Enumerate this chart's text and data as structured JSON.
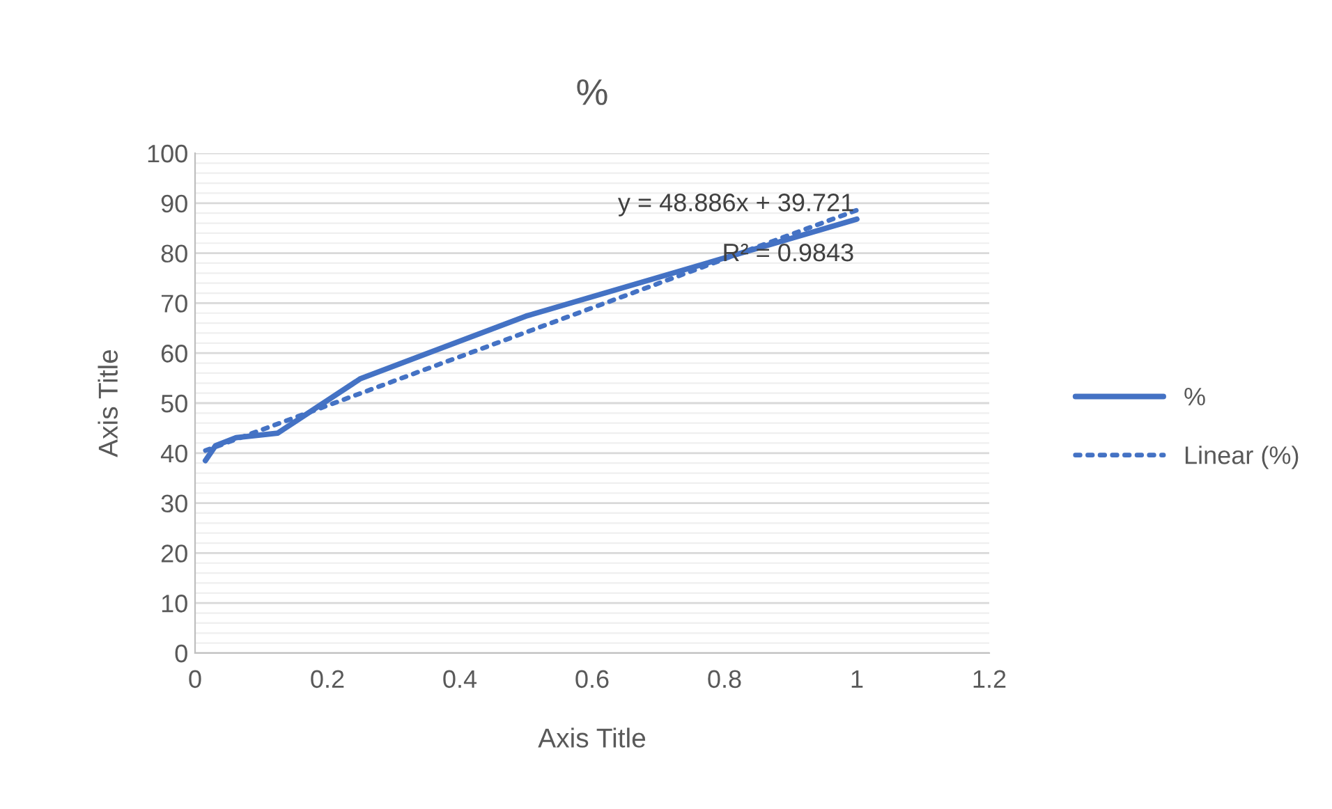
{
  "chart_data": {
    "type": "line",
    "title": "%",
    "xlabel": "Axis Title",
    "ylabel": "Axis Title",
    "xlim": [
      0,
      1.2
    ],
    "xticks": [
      0,
      0.2,
      0.4,
      0.6,
      0.8,
      1,
      1.2
    ],
    "ylim": [
      0,
      100
    ],
    "yticks": [
      0,
      10,
      20,
      30,
      40,
      50,
      60,
      70,
      80,
      90,
      100
    ],
    "grid": "y",
    "legend": "right",
    "marker": "none",
    "series": [
      {
        "name": "%",
        "color": "#4472c4",
        "line_style": "solid",
        "x": [
          0.0156,
          0.031,
          0.062,
          0.125,
          0.25,
          0.5,
          1
        ],
        "values": [
          38.5,
          41.5,
          43.1,
          44,
          54.9,
          67.4,
          86.8
        ]
      },
      {
        "name": "Linear (%)",
        "color": "#4472c4",
        "line_style": "dotted",
        "x": [
          0.0156,
          1
        ],
        "values": [
          40.5,
          88.6
        ]
      }
    ],
    "annotations": [
      "y = 48.886x + 39.721",
      "R² = 0.9843"
    ]
  }
}
